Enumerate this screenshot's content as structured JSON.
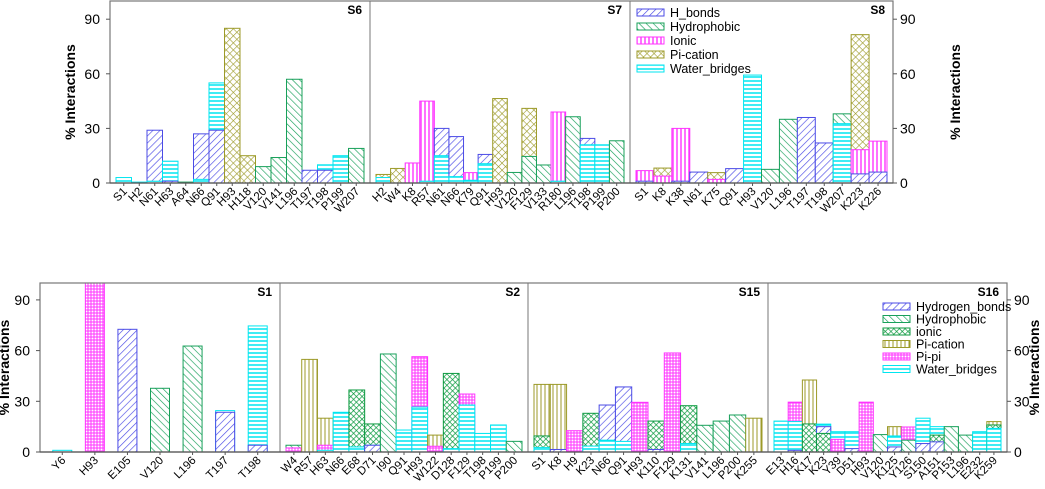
{
  "chart_data": [
    {
      "type": "bar",
      "ylabel": "% Interactions",
      "yticks": [
        0,
        30,
        60,
        90
      ],
      "ylim": [
        0,
        100
      ],
      "legend": {
        "placement": "inside-top-right-panel",
        "entries": [
          "H_bonds",
          "Hydrophobic",
          "Ionic",
          "Pi-cation",
          "Water_bridges"
        ]
      },
      "colors": {
        "H_bonds": "#4b4be6",
        "Hydrophobic": "#18a05a",
        "Ionic": "#ff33ff",
        "Pi-cation": "#9c9a28",
        "Water_bridges": "#00e6f0"
      },
      "panels": [
        {
          "label": "S6",
          "bars": [
            {
              "residue": "S1",
              "values": {
                "Water_bridges": 3
              }
            },
            {
              "residue": "H2",
              "values": {
                "Water_bridges": 0.5
              }
            },
            {
              "residue": "N61",
              "values": {
                "H_bonds": 29,
                "Water_bridges": 1
              }
            },
            {
              "residue": "H63",
              "values": {
                "Water_bridges": 12,
                "H_bonds": 1
              }
            },
            {
              "residue": "A64",
              "values": {
                "Hydrophobic": 0.5
              }
            },
            {
              "residue": "N66",
              "values": {
                "H_bonds": 27,
                "Water_bridges": 2
              }
            },
            {
              "residue": "Q91",
              "values": {
                "Water_bridges": 55,
                "H_bonds": 29
              }
            },
            {
              "residue": "H93",
              "values": {
                "Pi-cation": 85
              }
            },
            {
              "residue": "H118",
              "values": {
                "Pi-cation": 15
              }
            },
            {
              "residue": "V120",
              "values": {
                "Hydrophobic": 9
              }
            },
            {
              "residue": "V141",
              "values": {
                "Hydrophobic": 14
              }
            },
            {
              "residue": "L196",
              "values": {
                "Hydrophobic": 57
              }
            },
            {
              "residue": "T197",
              "values": {
                "H_bonds": 7
              }
            },
            {
              "residue": "T198",
              "values": {
                "Water_bridges": 10,
                "H_bonds": 7
              }
            },
            {
              "residue": "P199",
              "values": {
                "Water_bridges": 15
              }
            },
            {
              "residue": "W207",
              "values": {
                "Hydrophobic": 19
              }
            }
          ]
        },
        {
          "label": "S7",
          "bars": [
            {
              "residue": "H2",
              "values": {
                "Pi-cation": 4.7,
                "Water_bridges": 3
              }
            },
            {
              "residue": "W4",
              "values": {
                "Pi-cation": 8
              }
            },
            {
              "residue": "K8",
              "values": {
                "Ionic": 11
              }
            },
            {
              "residue": "R57",
              "values": {
                "Ionic": 45,
                "Water_bridges": 1
              }
            },
            {
              "residue": "N61",
              "values": {
                "H_bonds": 30,
                "Water_bridges": 15
              }
            },
            {
              "residue": "N66",
              "values": {
                "H_bonds": 25.5,
                "Water_bridges": 3.5
              }
            },
            {
              "residue": "K79",
              "values": {
                "Ionic": 5.7,
                "Water_bridges": 1.5
              }
            },
            {
              "residue": "Q91",
              "values": {
                "H_bonds": 15.7,
                "Water_bridges": 10.6
              }
            },
            {
              "residue": "H93",
              "values": {
                "Pi-cation": 46.4
              }
            },
            {
              "residue": "V120",
              "values": {
                "Hydrophobic": 5.8
              }
            },
            {
              "residue": "F129",
              "values": {
                "Pi-cation": 41,
                "Hydrophobic": 14.6
              }
            },
            {
              "residue": "V133",
              "values": {
                "Hydrophobic": 9.9
              }
            },
            {
              "residue": "R180",
              "values": {
                "Ionic": 39,
                "Water_bridges": 1
              }
            },
            {
              "residue": "L196",
              "values": {
                "Hydrophobic": 36.4
              }
            },
            {
              "residue": "T198",
              "values": {
                "H_bonds": 24.5,
                "Water_bridges": 21
              }
            },
            {
              "residue": "P199",
              "values": {
                "Water_bridges": 21
              }
            },
            {
              "residue": "P200",
              "values": {
                "Hydrophobic": 23.2
              }
            }
          ]
        },
        {
          "label": "S8",
          "bars": [
            {
              "residue": "S1",
              "values": {
                "Ionic": 6.8,
                "H_bonds": 1
              }
            },
            {
              "residue": "K8",
              "values": {
                "Pi-cation": 8.2,
                "Ionic": 3.8
              }
            },
            {
              "residue": "K38",
              "values": {
                "Ionic": 30,
                "H_bonds": 1
              }
            },
            {
              "residue": "N61",
              "values": {
                "H_bonds": 6
              }
            },
            {
              "residue": "K75",
              "values": {
                "Pi-cation": 5.7,
                "Ionic": 2
              }
            },
            {
              "residue": "Q91",
              "values": {
                "H_bonds": 7.9
              }
            },
            {
              "residue": "H93",
              "values": {
                "Water_bridges": 59.3
              }
            },
            {
              "residue": "V120",
              "values": {
                "Hydrophobic": 7.5
              }
            },
            {
              "residue": "L196",
              "values": {
                "Hydrophobic": 35
              }
            },
            {
              "residue": "T197",
              "values": {
                "H_bonds": 36
              }
            },
            {
              "residue": "T198",
              "values": {
                "H_bonds": 22
              }
            },
            {
              "residue": "W207",
              "values": {
                "Hydrophobic": 38,
                "Water_bridges": 32.6
              }
            },
            {
              "residue": "K223",
              "values": {
                "Pi-cation": 81.5,
                "Ionic": 18.3,
                "H_bonds": 5
              }
            },
            {
              "residue": "K226",
              "values": {
                "Ionic": 23,
                "H_bonds": 6
              }
            }
          ]
        }
      ]
    },
    {
      "type": "bar",
      "ylabel": "% Interactions",
      "yticks": [
        0,
        30,
        60,
        90
      ],
      "ylim": [
        0,
        100
      ],
      "legend": {
        "placement": "inside-top-right-panel",
        "entries": [
          "Hydrogen_bonds",
          "Hydrophobic",
          "ionic",
          "Pi-cation",
          "Pi-pi",
          "Water_bridges"
        ]
      },
      "colors": {
        "Hydrogen_bonds": "#4b4be6",
        "Hydrophobic": "#18a05a",
        "ionic": "#0c9a40",
        "Pi-cation": "#9c9a28",
        "Pi-pi": "#ff33ff",
        "Water_bridges": "#00e6f0"
      },
      "panels": [
        {
          "label": "S1",
          "bars": [
            {
              "residue": "Y6",
              "values": {
                "Water_bridges": 1
              }
            },
            {
              "residue": "H93",
              "values": {
                "Pi-pi": 100
              }
            },
            {
              "residue": "E105",
              "values": {
                "Hydrogen_bonds": 72.6
              }
            },
            {
              "residue": "V120",
              "values": {
                "Hydrophobic": 37.7
              }
            },
            {
              "residue": "L196",
              "values": {
                "Hydrophobic": 62.7
              }
            },
            {
              "residue": "T197",
              "values": {
                "Water_bridges": 24.5,
                "Hydrogen_bonds": 23.5
              }
            },
            {
              "residue": "T198",
              "values": {
                "Water_bridges": 74.6,
                "Hydrogen_bonds": 4
              }
            }
          ]
        },
        {
          "label": "S2",
          "bars": [
            {
              "residue": "W4",
              "values": {
                "Hydrophobic": 4,
                "Pi-pi": 2.4
              }
            },
            {
              "residue": "R57",
              "values": {
                "Pi-cation": 54.8
              }
            },
            {
              "residue": "H63",
              "values": {
                "Pi-cation": 20,
                "Pi-pi": 4,
                "Water_bridges": 1
              }
            },
            {
              "residue": "N66",
              "values": {
                "Water_bridges": 23.5
              }
            },
            {
              "residue": "E68",
              "values": {
                "ionic": 36.7,
                "Water_bridges": 3
              }
            },
            {
              "residue": "D71",
              "values": {
                "ionic": 16.6,
                "Water_bridges": 4,
                "Hydrogen_bonds": 4
              }
            },
            {
              "residue": "I90",
              "values": {
                "Hydrophobic": 58
              }
            },
            {
              "residue": "Q91",
              "values": {
                "Water_bridges": 13
              }
            },
            {
              "residue": "H93",
              "values": {
                "Pi-pi": 56.4,
                "Water_bridges": 26.6
              }
            },
            {
              "residue": "W122",
              "values": {
                "Pi-cation": 10,
                "Pi-pi": 3.4
              }
            },
            {
              "residue": "D128",
              "values": {
                "ionic": 46.5,
                "Water_bridges": 2
              }
            },
            {
              "residue": "F129",
              "values": {
                "Pi-pi": 34.3,
                "Water_bridges": 27.8
              }
            },
            {
              "residue": "T198",
              "values": {
                "Water_bridges": 11
              }
            },
            {
              "residue": "P199",
              "values": {
                "Water_bridges": 16
              }
            },
            {
              "residue": "P200",
              "values": {
                "Hydrophobic": 6.3
              }
            }
          ]
        },
        {
          "label": "S15",
          "bars": [
            {
              "residue": "S1",
              "values": {
                "Pi-cation": 40,
                "ionic": 9.5,
                "Water_bridges": 2.6
              }
            },
            {
              "residue": "K8",
              "values": {
                "Pi-cation": 40,
                "Hydrogen_bonds": 1.5
              }
            },
            {
              "residue": "H9",
              "values": {
                "Pi-pi": 12.6
              }
            },
            {
              "residue": "K23",
              "values": {
                "ionic": 22.9,
                "Water_bridges": 3.5
              }
            },
            {
              "residue": "N66",
              "values": {
                "Hydrogen_bonds": 27.8,
                "Water_bridges": 7
              }
            },
            {
              "residue": "Q91",
              "values": {
                "Hydrogen_bonds": 38.5,
                "Water_bridges": 6.3
              }
            },
            {
              "residue": "H93",
              "values": {
                "Pi-pi": 29.4
              }
            },
            {
              "residue": "K110",
              "values": {
                "ionic": 18.3,
                "Hydrogen_bonds": 1.5
              }
            },
            {
              "residue": "F129",
              "values": {
                "Pi-pi": 58.6
              }
            },
            {
              "residue": "K131",
              "values": {
                "ionic": 27.4,
                "Water_bridges": 5
              }
            },
            {
              "residue": "V141",
              "values": {
                "Hydrophobic": 15.8
              }
            },
            {
              "residue": "L196",
              "values": {
                "Hydrophobic": 18.3
              }
            },
            {
              "residue": "P200",
              "values": {
                "Hydrophobic": 21.9
              }
            },
            {
              "residue": "K255",
              "values": {
                "Pi-cation": 20
              }
            }
          ]
        },
        {
          "label": "S16",
          "bars": [
            {
              "residue": "E13",
              "values": {
                "Water_bridges": 18.3
              }
            },
            {
              "residue": "H16",
              "values": {
                "Pi-pi": 29.5,
                "Water_bridges": 18,
                "Hydrogen_bonds": 1
              }
            },
            {
              "residue": "K17",
              "values": {
                "Pi-cation": 42.6,
                "ionic": 16.6
              }
            },
            {
              "residue": "K23",
              "values": {
                "Water_bridges": 16.5,
                "Hydrogen_bonds": 15,
                "ionic": 11
              }
            },
            {
              "residue": "Y39",
              "values": {
                "Water_bridges": 12,
                "Pi-pi": 7.5
              }
            },
            {
              "residue": "D51",
              "values": {
                "Water_bridges": 12,
                "Hydrogen_bonds": 2
              }
            },
            {
              "residue": "H93",
              "values": {
                "Pi-pi": 29.5
              }
            },
            {
              "residue": "V120",
              "values": {
                "Hydrophobic": 10.3
              }
            },
            {
              "residue": "K125",
              "values": {
                "Pi-cation": 15,
                "Water_bridges": 9.5,
                "Hydrogen_bonds": 3
              }
            },
            {
              "residue": "Y126",
              "values": {
                "Pi-pi": 14.8,
                "Hydrophobic": 7
              }
            },
            {
              "residue": "S150",
              "values": {
                "Water_bridges": 20,
                "Hydrogen_bonds": 5
              }
            },
            {
              "residue": "A151",
              "values": {
                "Water_bridges": 15,
                "ionic": 10,
                "Hydrogen_bonds": 6
              }
            },
            {
              "residue": "P153",
              "values": {
                "Hydrophobic": 15
              }
            },
            {
              "residue": "L196",
              "values": {
                "Hydrophobic": 10
              }
            },
            {
              "residue": "E232",
              "values": {
                "Water_bridges": 12
              }
            },
            {
              "residue": "K259",
              "values": {
                "Pi-cation": 18,
                "ionic": 16,
                "Water_bridges": 14
              }
            }
          ]
        }
      ]
    }
  ]
}
